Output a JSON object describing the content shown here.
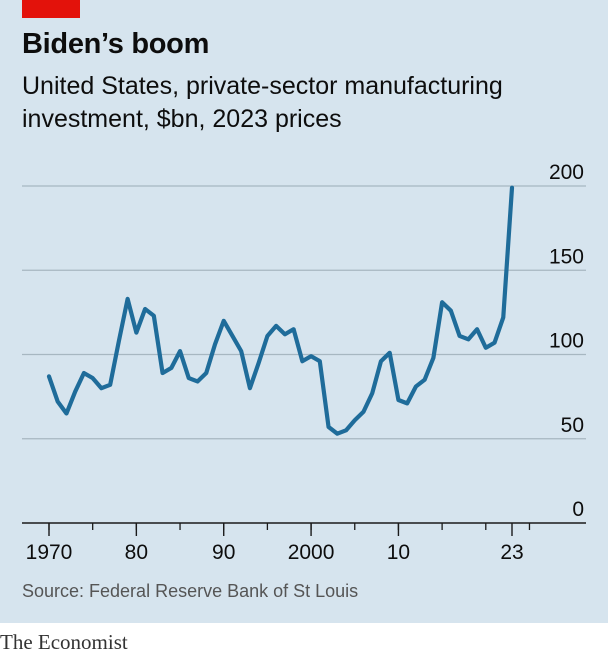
{
  "header": {
    "title": "Biden’s boom",
    "subtitle": "United States, private-sector manufacturing investment, $bn, 2023 prices"
  },
  "footer": {
    "source": "Source: Federal Reserve Bank of St Louis",
    "brand": "The Economist"
  },
  "colors": {
    "background": "#d6e4ee",
    "line": "#1f6c9a",
    "tag": "#e3120b"
  },
  "chart_data": {
    "type": "line",
    "title": "Biden’s boom",
    "subtitle": "United States, private-sector manufacturing investment, $bn, 2023 prices",
    "ylim": [
      0,
      200
    ],
    "xlim": [
      1970,
      2023
    ],
    "yticks": [
      0,
      50,
      100,
      150,
      200
    ],
    "ytick_labels": [
      "0",
      "50",
      "100",
      "150",
      "200"
    ],
    "xtick_positions": [
      1970,
      1980,
      1990,
      2000,
      2010,
      2023
    ],
    "xtick_labels": [
      "1970",
      "80",
      "90",
      "2000",
      "10",
      "23"
    ],
    "grid": true,
    "series": [
      {
        "x": [
          1970,
          1971,
          1972,
          1973,
          1974,
          1975,
          1976,
          1977,
          1978,
          1979,
          1980,
          1981,
          1982,
          1983,
          1984,
          1985,
          1986,
          1987,
          1988,
          1989,
          1990,
          1991,
          1992,
          1993,
          1994,
          1995,
          1996,
          1997,
          1998,
          1999,
          2000,
          2001,
          2002,
          2003,
          2004,
          2005,
          2006,
          2007,
          2008,
          2009,
          2010,
          2011,
          2012,
          2013,
          2014,
          2015,
          2016,
          2017,
          2018,
          2019,
          2020,
          2021,
          2022,
          2023
        ],
        "values": [
          87,
          72,
          65,
          78,
          89,
          86,
          80,
          82,
          108,
          133,
          113,
          127,
          123,
          89,
          92,
          102,
          86,
          84,
          89,
          106,
          120,
          111,
          102,
          80,
          95,
          111,
          117,
          112,
          115,
          96,
          99,
          96,
          57,
          53,
          55,
          61,
          66,
          77,
          96,
          101,
          73,
          71,
          81,
          85,
          98,
          131,
          126,
          111,
          109,
          115,
          104,
          107,
          122,
          199
        ]
      }
    ]
  }
}
